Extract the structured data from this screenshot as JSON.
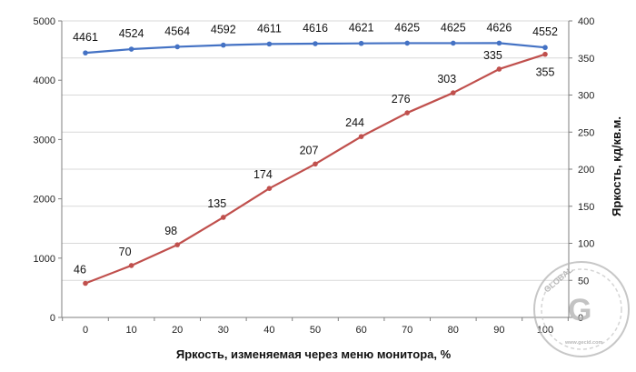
{
  "chart_data": {
    "type": "line",
    "title": "",
    "xlabel": "Яркость, изменяемая через меню монитора, %",
    "ylabel": "",
    "y2label": "Яркость, кд/кв.м.",
    "x": [
      0,
      10,
      20,
      30,
      40,
      50,
      60,
      70,
      80,
      90,
      100
    ],
    "x_tick_labels": [
      "0",
      "10",
      "20",
      "30",
      "40",
      "50",
      "60",
      "70",
      "80",
      "90",
      "100"
    ],
    "ylim": [
      0,
      5000
    ],
    "y_tick_labels": [
      "0",
      "1000",
      "2000",
      "3000",
      "4000",
      "5000"
    ],
    "y2lim": [
      0,
      400
    ],
    "y2_tick_labels": [
      "0",
      "50",
      "100",
      "150",
      "200",
      "250",
      "300",
      "350",
      "400"
    ],
    "grid": true,
    "series": [
      {
        "axis": "left",
        "color": "#4472c4",
        "values": [
          4461,
          4524,
          4564,
          4592,
          4611,
          4616,
          4621,
          4625,
          4625,
          4626,
          4552
        ],
        "labels": [
          "4461",
          "4524",
          "4564",
          "4592",
          "4611",
          "4616",
          "4621",
          "4625",
          "4625",
          "4626",
          "4552"
        ]
      },
      {
        "axis": "right",
        "color": "#c0504d",
        "values": [
          46,
          70,
          98,
          135,
          174,
          207,
          244,
          276,
          303,
          335,
          355
        ],
        "labels": [
          "46",
          "70",
          "98",
          "135",
          "174",
          "207",
          "244",
          "276",
          "303",
          "335",
          "355"
        ]
      }
    ]
  },
  "watermark": {
    "word": "GLOBAL",
    "domain": "www.gecid.com",
    "color": "#9a9a9a"
  }
}
